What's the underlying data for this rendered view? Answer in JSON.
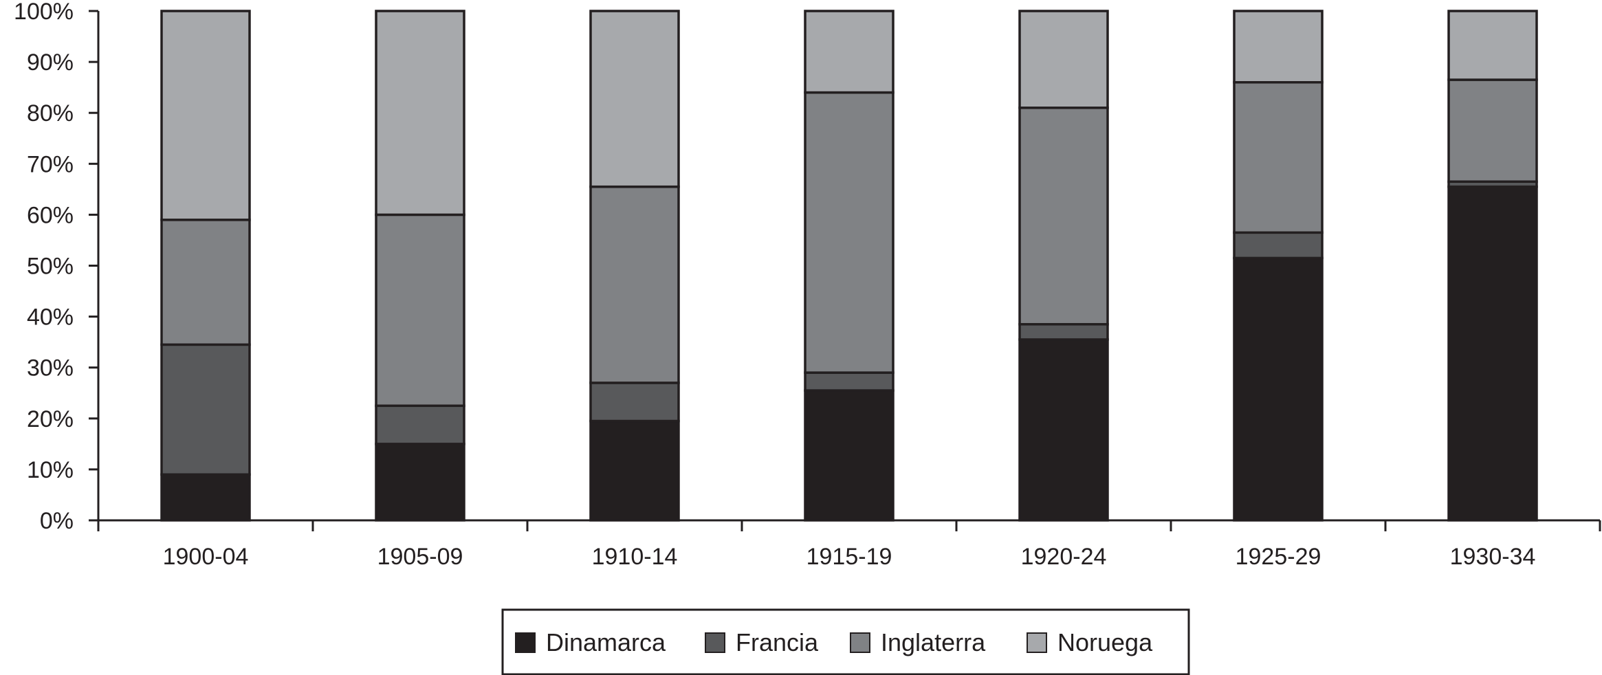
{
  "chart_data": {
    "type": "bar",
    "stacked": true,
    "percent_stacked": true,
    "title": "",
    "xlabel": "",
    "ylabel": "",
    "ylim": [
      0,
      100
    ],
    "y_ticks": [
      "0%",
      "10%",
      "20%",
      "30%",
      "40%",
      "50%",
      "60%",
      "70%",
      "80%",
      "90%",
      "100%"
    ],
    "categories": [
      "1900-04",
      "1905-09",
      "1910-14",
      "1915-19",
      "1920-24",
      "1925-29",
      "1930-34"
    ],
    "series": [
      {
        "name": "Dinamarca",
        "color": "#231f20",
        "values": [
          9.0,
          15.0,
          19.5,
          25.5,
          35.5,
          51.5,
          65.5
        ]
      },
      {
        "name": "Francia",
        "color": "#58595b",
        "values": [
          25.5,
          7.5,
          7.5,
          3.5,
          3.0,
          5.0,
          1.0
        ]
      },
      {
        "name": "Inglaterra",
        "color": "#808285",
        "values": [
          24.5,
          37.5,
          38.5,
          55.0,
          42.5,
          29.5,
          20.0
        ]
      },
      {
        "name": "Noruega",
        "color": "#a7a9ac",
        "values": [
          41.0,
          40.0,
          34.5,
          16.0,
          19.0,
          14.0,
          13.5
        ]
      }
    ],
    "grid": false,
    "legend": {
      "position": "bottom",
      "entries": [
        "Dinamarca",
        "Francia",
        "Inglaterra",
        "Noruega"
      ]
    }
  }
}
